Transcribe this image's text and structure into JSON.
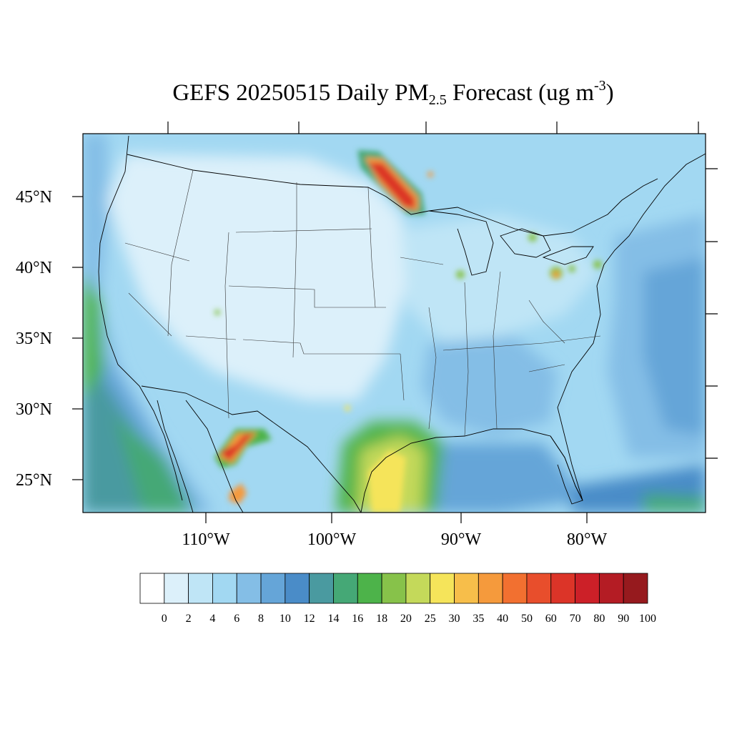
{
  "map": {
    "title": {
      "prefix": "GEFS 20250515 Daily PM",
      "subscript": "2.5",
      "middle": " Forecast (ug m",
      "superscript": "-3",
      "suffix": ")"
    },
    "lat_labels": [
      "45°N",
      "40°N",
      "35°N",
      "30°N",
      "25°N"
    ],
    "lon_labels": [
      "110°W",
      "100°W",
      "90°W",
      "80°W"
    ],
    "colorbar": {
      "labels": [
        "0",
        "2",
        "4",
        "6",
        "8",
        "10",
        "12",
        "14",
        "16",
        "18",
        "20",
        "25",
        "30",
        "35",
        "40",
        "50",
        "60",
        "70",
        "80",
        "90",
        "100"
      ],
      "colors": [
        "#ffffff",
        "#dcf0fa",
        "#bfe5f6",
        "#a2d8f2",
        "#84bee6",
        "#65a5d8",
        "#4a8cc8",
        "#4a9aa0",
        "#45a876",
        "#4db34a",
        "#87c24a",
        "#c4d95a",
        "#f5e45a",
        "#f7be4a",
        "#f59a3c",
        "#f27030",
        "#e84e2c",
        "#dc3428",
        "#cc2028",
        "#b41c24",
        "#961a1e"
      ]
    },
    "field_colors": {
      "light": "#dcf0fa",
      "light2": "#bfe5f6",
      "mid": "#a2d8f2",
      "mid2": "#84bee6",
      "blue": "#65a5d8",
      "blue2": "#4a8cc8",
      "teal": "#4a9aa0",
      "green": "#45a876",
      "green2": "#4db34a",
      "lime": "#87c24a",
      "yellow": "#f5e45a",
      "orange": "#f59a3c",
      "red": "#dc3428",
      "darkred": "#b41c24"
    }
  }
}
